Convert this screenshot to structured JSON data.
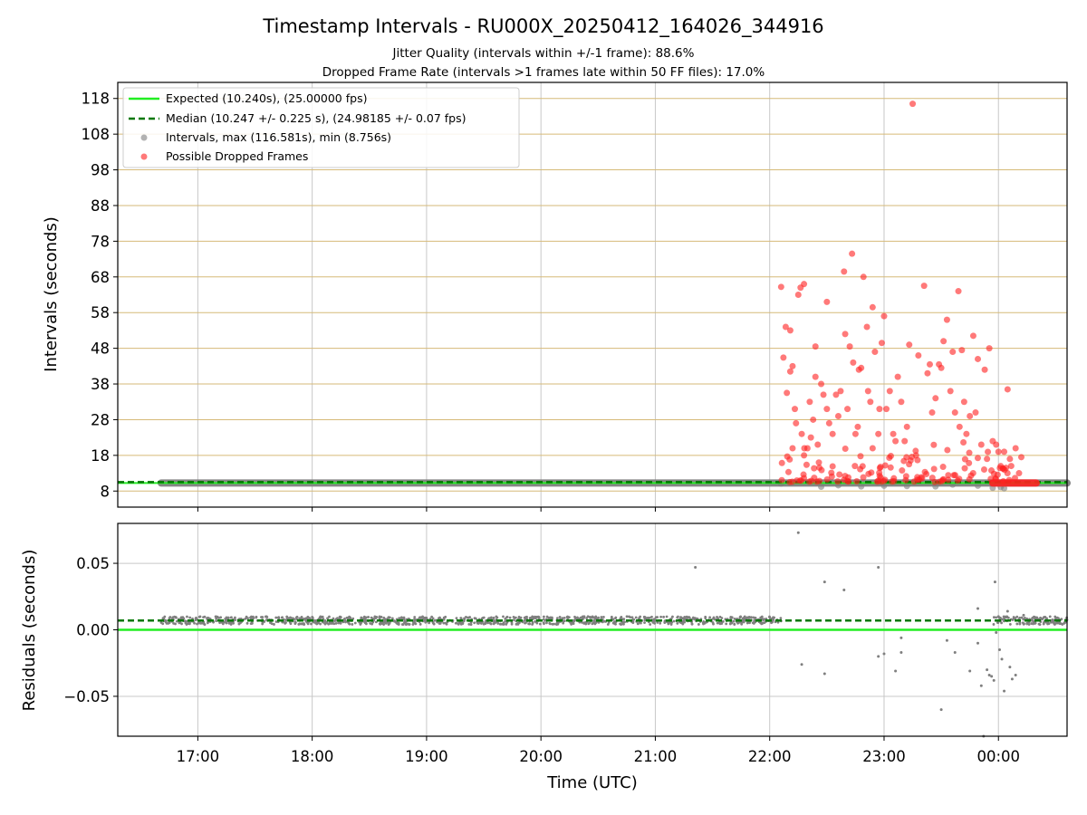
{
  "figure": {
    "title": "Timestamp Intervals - RU000X_20250412_164026_344916",
    "subtitle_1": "Jitter Quality (intervals within +/-1 frame): 88.6%",
    "subtitle_2": "Dropped Frame Rate (intervals >1 frames late within 50 FF files): 17.0%",
    "xlabel": "Time (UTC)"
  },
  "colors": {
    "expected": "#22ee22",
    "median": "#007700",
    "intervals": "#7f7f7f",
    "dropped": "#ff2020",
    "hgrid_top": "#d6ba78",
    "grid": "#c8c8c8"
  },
  "chart_data": [
    {
      "type": "scatter",
      "ylabel": "Intervals (seconds)",
      "x_unit": "hours (UTC, 24 = 00:00 next day)",
      "xlim": [
        16.3,
        24.6
      ],
      "ylim": [
        3.5,
        122.5
      ],
      "x_ticks": [
        17,
        18,
        19,
        20,
        21,
        22,
        23,
        24
      ],
      "x_tick_labels": [
        "17:00",
        "18:00",
        "19:00",
        "20:00",
        "21:00",
        "22:00",
        "23:00",
        "00:00"
      ],
      "y_ticks": [
        8,
        18,
        28,
        38,
        48,
        58,
        68,
        78,
        88,
        98,
        108,
        118
      ],
      "grid": true,
      "legend_position": "top-left",
      "legend": [
        "Expected (10.240s), (25.00000 fps)",
        "Median (10.247 +/- 0.225 s), (24.98185 +/- 0.07 fps)",
        "Intervals, max (116.581s), min (8.756s)",
        "Possible Dropped Frames"
      ],
      "expected": 10.24,
      "median": 10.247,
      "interval_segments": [
        [
          16.68,
          22.1,
          10.25
        ],
        [
          22.1,
          24.6,
          10.25
        ]
      ],
      "dropped_band": [
        23.95,
        24.33,
        10.24
      ],
      "dropped_points": [
        [
          22.1,
          65.2
        ],
        [
          22.12,
          45.4
        ],
        [
          22.14,
          54
        ],
        [
          22.15,
          35.5
        ],
        [
          22.18,
          53
        ],
        [
          22.18,
          41.5
        ],
        [
          22.2,
          43
        ],
        [
          22.2,
          20
        ],
        [
          22.22,
          31
        ],
        [
          22.23,
          27
        ],
        [
          22.25,
          63
        ],
        [
          22.27,
          65
        ],
        [
          22.3,
          66
        ],
        [
          22.28,
          24
        ],
        [
          22.3,
          18
        ],
        [
          22.33,
          20
        ],
        [
          22.35,
          33
        ],
        [
          22.36,
          23
        ],
        [
          22.38,
          28
        ],
        [
          22.4,
          48.5
        ],
        [
          22.4,
          40
        ],
        [
          22.42,
          21
        ],
        [
          22.43,
          16
        ],
        [
          22.45,
          38
        ],
        [
          22.47,
          35
        ],
        [
          22.5,
          61
        ],
        [
          22.5,
          31
        ],
        [
          22.52,
          27
        ],
        [
          22.55,
          24
        ],
        [
          22.58,
          35
        ],
        [
          22.6,
          29
        ],
        [
          22.62,
          36
        ],
        [
          22.65,
          69.5
        ],
        [
          22.66,
          52
        ],
        [
          22.68,
          31
        ],
        [
          22.7,
          48.5
        ],
        [
          22.72,
          74.5
        ],
        [
          22.73,
          44
        ],
        [
          22.75,
          24
        ],
        [
          22.77,
          26
        ],
        [
          22.78,
          42
        ],
        [
          22.8,
          42.5
        ],
        [
          22.82,
          68
        ],
        [
          22.85,
          54
        ],
        [
          22.86,
          36
        ],
        [
          22.88,
          33
        ],
        [
          22.9,
          59.5
        ],
        [
          22.9,
          20
        ],
        [
          22.92,
          47
        ],
        [
          22.95,
          24
        ],
        [
          22.96,
          31
        ],
        [
          22.98,
          49.5
        ],
        [
          23.0,
          57
        ],
        [
          23.02,
          31
        ],
        [
          23.05,
          36
        ],
        [
          23.08,
          24
        ],
        [
          23.1,
          22
        ],
        [
          23.12,
          40
        ],
        [
          23.15,
          33
        ],
        [
          23.18,
          22
        ],
        [
          23.2,
          26
        ],
        [
          23.22,
          49
        ],
        [
          23.25,
          116.5
        ],
        [
          23.28,
          18
        ],
        [
          23.3,
          46
        ],
        [
          23.35,
          65.5
        ],
        [
          23.38,
          41
        ],
        [
          23.4,
          43.5
        ],
        [
          23.42,
          30
        ],
        [
          23.45,
          34
        ],
        [
          23.48,
          43.5
        ],
        [
          23.5,
          42.5
        ],
        [
          23.52,
          50
        ],
        [
          23.55,
          56
        ],
        [
          23.58,
          36
        ],
        [
          23.6,
          47
        ],
        [
          23.62,
          30
        ],
        [
          23.65,
          64
        ],
        [
          23.66,
          26
        ],
        [
          23.68,
          47.5
        ],
        [
          23.7,
          33
        ],
        [
          23.72,
          24
        ],
        [
          23.75,
          29
        ],
        [
          23.78,
          51.5
        ],
        [
          23.8,
          30
        ],
        [
          23.82,
          45
        ],
        [
          23.85,
          21
        ],
        [
          23.88,
          42
        ],
        [
          23.9,
          17
        ],
        [
          23.92,
          48
        ],
        [
          23.95,
          22
        ],
        [
          23.98,
          21
        ],
        [
          24.0,
          19
        ],
        [
          24.02,
          15
        ],
        [
          24.05,
          19
        ],
        [
          24.08,
          36.5
        ],
        [
          24.1,
          17
        ],
        [
          24.15,
          20
        ],
        [
          24.18,
          13
        ],
        [
          24.2,
          17.5
        ]
      ],
      "interval_extra_points": [
        [
          22.45,
          9.2
        ],
        [
          22.6,
          9.6
        ],
        [
          22.8,
          9.3
        ],
        [
          23.0,
          9.5
        ],
        [
          23.2,
          9.4
        ],
        [
          23.45,
          9.3
        ],
        [
          23.6,
          9.8
        ],
        [
          23.82,
          9.5
        ],
        [
          23.95,
          8.9
        ],
        [
          24.02,
          9.1
        ],
        [
          24.05,
          8.76
        ]
      ]
    },
    {
      "type": "scatter",
      "ylabel": "Residuals (seconds)",
      "xlim": [
        16.3,
        24.6
      ],
      "ylim": [
        -0.08,
        0.08
      ],
      "y_ticks": [
        0.05,
        0.0,
        -0.05
      ],
      "y_tick_labels": [
        "0.05",
        "0.00",
        "−0.05"
      ],
      "grid": true,
      "expected_residual": 0.0,
      "median_residual": 0.007,
      "residual_band": [
        [
          16.68,
          22.1,
          0.007
        ],
        [
          23.95,
          24.6,
          0.007
        ]
      ],
      "residual_points": [
        [
          21.35,
          0.047
        ],
        [
          22.25,
          0.073
        ],
        [
          22.28,
          -0.026
        ],
        [
          22.48,
          0.036
        ],
        [
          22.48,
          -0.033
        ],
        [
          22.65,
          0.03
        ],
        [
          22.95,
          0.047
        ],
        [
          22.95,
          -0.02
        ],
        [
          23.0,
          -0.018
        ],
        [
          23.1,
          -0.031
        ],
        [
          23.15,
          -0.017
        ],
        [
          23.15,
          -0.006
        ],
        [
          23.5,
          -0.06
        ],
        [
          23.55,
          -0.008
        ],
        [
          23.62,
          -0.017
        ],
        [
          23.75,
          -0.031
        ],
        [
          23.82,
          0.016
        ],
        [
          23.82,
          -0.01
        ],
        [
          23.85,
          -0.042
        ],
        [
          23.87,
          -0.08
        ],
        [
          23.9,
          -0.03
        ],
        [
          23.92,
          -0.034
        ],
        [
          23.94,
          -0.035
        ],
        [
          23.96,
          -0.038
        ],
        [
          23.97,
          0.036
        ],
        [
          23.98,
          -0.002
        ],
        [
          24.0,
          0.01
        ],
        [
          24.01,
          -0.015
        ],
        [
          24.03,
          -0.022
        ],
        [
          24.05,
          -0.046
        ],
        [
          24.08,
          0.014
        ],
        [
          24.1,
          -0.028
        ],
        [
          24.12,
          -0.037
        ],
        [
          24.15,
          -0.034
        ],
        [
          24.18,
          0.008
        ],
        [
          24.22,
          0.011
        ]
      ]
    }
  ]
}
